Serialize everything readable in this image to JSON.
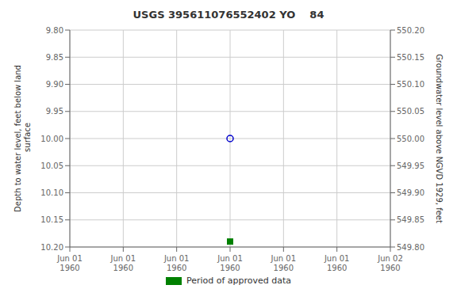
{
  "chart_data": {
    "type": "scatter",
    "title": "USGS 395611076552402 YO    84",
    "y_label": "Depth to water level, feet below land\n surface",
    "y2_label": "Groundwater level above NGVD 1929, feet",
    "categories": [
      "Jun 01\n1960",
      "Jun 01\n1960",
      "Jun 01\n1960",
      "Jun 01\n1960",
      "Jun 01\n1960",
      "Jun 01\n1960",
      "Jun 02\n1960"
    ],
    "series": [
      {
        "color": "#0000cc",
        "marker": "open_circle",
        "values": [
          null,
          null,
          null,
          10.0,
          null,
          null,
          null
        ]
      },
      {
        "name": "Period of approved data",
        "color": "#008000",
        "marker": "square",
        "values": [
          null,
          null,
          null,
          10.19,
          null,
          null,
          null
        ]
      }
    ],
    "ylim": [
      10.2,
      9.8
    ],
    "yticks": [
      {
        "value": 9.8,
        "label": "9.80"
      },
      {
        "value": 9.85,
        "label": "9.85"
      },
      {
        "value": 9.9,
        "label": "9.90"
      },
      {
        "value": 9.95,
        "label": "9.95"
      },
      {
        "value": 10.0,
        "label": "10.00"
      },
      {
        "value": 10.05,
        "label": "10.05"
      },
      {
        "value": 10.1,
        "label": "10.10"
      },
      {
        "value": 10.15,
        "label": "10.15"
      },
      {
        "value": 10.2,
        "label": "10.20"
      }
    ],
    "y2lim": [
      549.8,
      550.2
    ],
    "y2ticks": [
      {
        "value": 550.2,
        "label": "550.20"
      },
      {
        "value": 550.15,
        "label": "550.15"
      },
      {
        "value": 550.1,
        "label": "550.10"
      },
      {
        "value": 550.05,
        "label": "550.05"
      },
      {
        "value": 550.0,
        "label": "550.00"
      },
      {
        "value": 549.95,
        "label": "549.95"
      },
      {
        "value": 549.9,
        "label": "549.90"
      },
      {
        "value": 549.85,
        "label": "549.85"
      },
      {
        "value": 549.8,
        "label": "549.80"
      }
    ],
    "grid": true,
    "legend": "bottom"
  }
}
